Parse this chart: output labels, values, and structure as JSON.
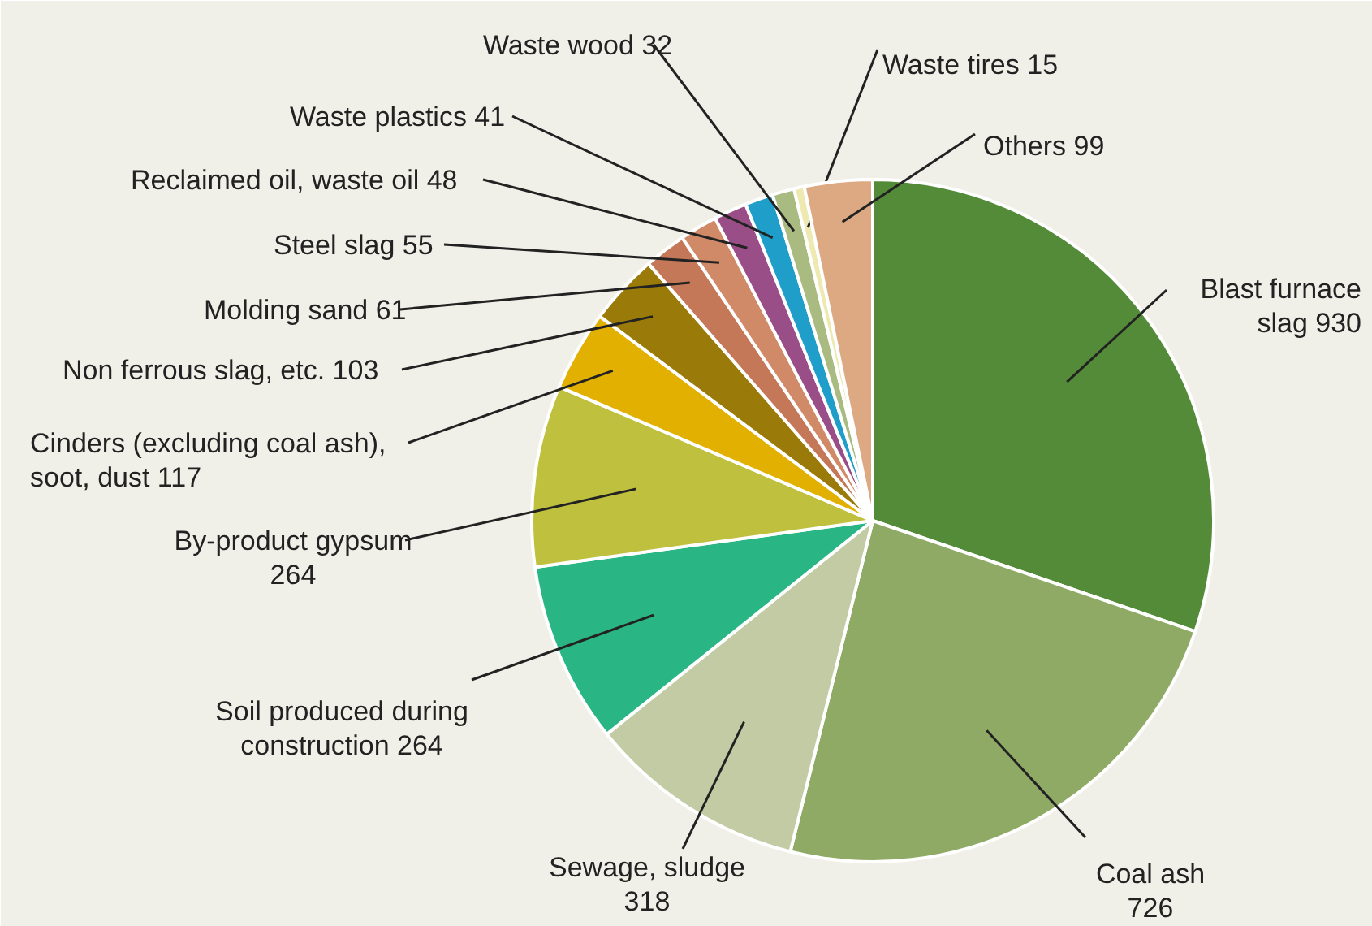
{
  "chart_data": {
    "type": "pie",
    "categories": [
      "Blast furnace slag 930",
      "Coal ash 726",
      "Sewage, sludge 318",
      "Soil produced during construction 264",
      "By-product gypsum 264",
      "Cinders (excluding coal ash), soot, dust 117",
      "Non ferrous slag, etc. 103",
      "Molding sand 61",
      "Steel slag 55",
      "Reclaimed oil, waste oil 48",
      "Waste plastics 41",
      "Waste wood 32",
      "Waste tires 15",
      "Others 99"
    ],
    "values": [
      930,
      726,
      318,
      264,
      264,
      117,
      103,
      61,
      55,
      48,
      41,
      32,
      15,
      99
    ],
    "colors": [
      "#548b38",
      "#8faa64",
      "#c3cba5",
      "#2ab585",
      "#bfc03e",
      "#e2b000",
      "#9a7b0a",
      "#c47858",
      "#d08a68",
      "#9a4e87",
      "#1e9ec8",
      "#a9bb80",
      "#ede9b0",
      "#dca983"
    ]
  }
}
